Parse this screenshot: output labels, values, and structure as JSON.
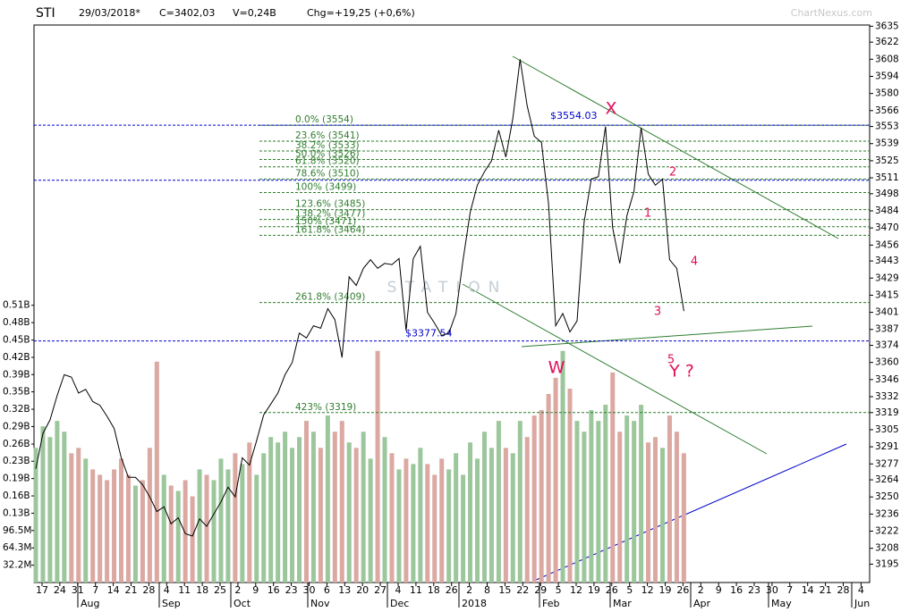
{
  "chart_data": {
    "type": "line",
    "header": [
      "STI",
      "29/03/2018*",
      "C=3402,03",
      "V=0,24B",
      "Chg=+19,25 (+0,6%)"
    ],
    "watermark": "ChartNexus.com",
    "ylim": [
      3180,
      3636
    ],
    "yticks": [
      3635,
      3622,
      3608,
      3594,
      3580,
      3566,
      3553,
      3539,
      3525,
      3511,
      3498,
      3484,
      3470,
      3456,
      3443,
      3429,
      3415,
      3401,
      3387,
      3374,
      3360,
      3346,
      3332,
      3319,
      3305,
      3291,
      3277,
      3264,
      3250,
      3236,
      3222,
      3208,
      3195
    ],
    "y2lim": [
      0,
      1035
    ],
    "y2ticks": [
      {
        "value": 514.7,
        "label": "0.51B"
      },
      {
        "value": 482.5,
        "label": "0.48B"
      },
      {
        "value": 450,
        "label": "0.45B"
      },
      {
        "value": 418,
        "label": "0.42B"
      },
      {
        "value": 386,
        "label": "0.39B"
      },
      {
        "value": 354,
        "label": "0.35B"
      },
      {
        "value": 321.7,
        "label": "0.32B"
      },
      {
        "value": 289.5,
        "label": "0.29B"
      },
      {
        "value": 257,
        "label": "0.26B"
      },
      {
        "value": 225.2,
        "label": "0.23B"
      },
      {
        "value": 193,
        "label": "0.19B"
      },
      {
        "value": 160.8,
        "label": "0.16B"
      },
      {
        "value": 128.7,
        "label": "0.13B"
      },
      {
        "value": 96.5,
        "label": "96.5M"
      },
      {
        "value": 64.3,
        "label": "64.3M"
      },
      {
        "value": 32.2,
        "label": "32.2M"
      }
    ],
    "xticks": [
      "17",
      "24",
      "31",
      "7",
      "14",
      "21",
      "28",
      "4",
      "11",
      "18",
      "25",
      "2",
      "9",
      "16",
      "23",
      "30",
      "6",
      "13",
      "20",
      "27",
      "4",
      "11",
      "18",
      "26",
      "2",
      "8",
      "15",
      "22",
      "29",
      "5",
      "12",
      "19",
      "26",
      "5",
      "12",
      "19",
      "26",
      "2",
      "9",
      "16",
      "23",
      "30",
      "7",
      "14",
      "21",
      "28",
      "4"
    ],
    "months": [
      "Aug",
      "Sep",
      "Oct",
      "Nov",
      "Dec",
      "2018",
      "Feb",
      "Mar",
      "Apr",
      "May",
      "Jun"
    ],
    "series": [
      {
        "color": "#000000",
        "values": [
          3273,
          3302,
          3313,
          3333,
          3350,
          3348,
          3335,
          3338,
          3328,
          3325,
          3316,
          3306,
          3282,
          3266,
          3266,
          3260,
          3250,
          3238,
          3242,
          3228,
          3233,
          3220,
          3218,
          3232,
          3226,
          3236,
          3246,
          3258,
          3250,
          3282,
          3276,
          3296,
          3317,
          3326,
          3335,
          3350,
          3360,
          3384,
          3380,
          3390,
          3388,
          3404,
          3395,
          3364,
          3430,
          3423,
          3437,
          3444,
          3437,
          3441,
          3440,
          3445,
          3386,
          3445,
          3455,
          3401,
          3392,
          3382,
          3384,
          3400,
          3444,
          3483,
          3505,
          3516,
          3525,
          3550,
          3528,
          3560,
          3608,
          3570,
          3545,
          3540,
          3490,
          3390,
          3400,
          3385,
          3394,
          3475,
          3510,
          3512,
          3553,
          3470,
          3441,
          3480,
          3500,
          3552,
          3514,
          3505,
          3510,
          3444,
          3437,
          3402.03
        ]
      },
      {
        "type": "bar",
        "axis": "y2",
        "up_color": "#9cc79c",
        "down_color": "#dba8a2",
        "values": [
          250,
          290,
          270,
          300,
          280,
          240,
          250,
          230,
          210,
          200,
          190,
          210,
          230,
          200,
          180,
          190,
          250,
          410,
          200,
          180,
          170,
          190,
          160,
          210,
          200,
          190,
          230,
          210,
          240,
          220,
          260,
          200,
          240,
          270,
          260,
          280,
          250,
          270,
          300,
          280,
          250,
          310,
          280,
          300,
          260,
          250,
          280,
          230,
          430,
          270,
          240,
          210,
          230,
          220,
          250,
          220,
          200,
          230,
          210,
          240,
          200,
          260,
          230,
          280,
          250,
          300,
          250,
          240,
          300,
          270,
          310,
          320,
          350,
          380,
          430,
          360,
          300,
          280,
          320,
          300,
          330,
          390,
          280,
          310,
          300,
          330,
          260,
          270,
          250,
          310,
          280,
          240
        ]
      }
    ],
    "fib_levels": [
      {
        "label": "0.0%  (3554)",
        "value": 3554
      },
      {
        "label": "23.6%  (3541)",
        "value": 3541
      },
      {
        "label": "38.2%  (3533)",
        "value": 3533
      },
      {
        "label": "50.0%  (3526)",
        "value": 3526
      },
      {
        "label": "61.8%  (3520)",
        "value": 3520
      },
      {
        "label": "78.6%  (3510)",
        "value": 3510
      },
      {
        "label": "100%  (3499)",
        "value": 3499
      },
      {
        "label": "123.6%  (3485)",
        "value": 3485
      },
      {
        "label": "138.2%  (3477)",
        "value": 3477
      },
      {
        "label": "150%  (3471)",
        "value": 3471
      },
      {
        "label": "161.8%  (3464)",
        "value": 3464
      },
      {
        "label": "261.8%  (3409)",
        "value": 3409
      },
      {
        "label": "423%  (3319)",
        "value": 3319
      }
    ],
    "fib_color": "#2e7d2e",
    "reference_lines": [
      {
        "value": 3554.03,
        "label": "$3554.03"
      },
      {
        "value": 3509
      },
      {
        "value": 3377.54,
        "label": "$3377.54"
      }
    ],
    "reference_color": "#0000cc",
    "annotations": [
      "X",
      "W",
      "Y ?",
      "1",
      "2",
      "3",
      "4",
      "5"
    ]
  }
}
